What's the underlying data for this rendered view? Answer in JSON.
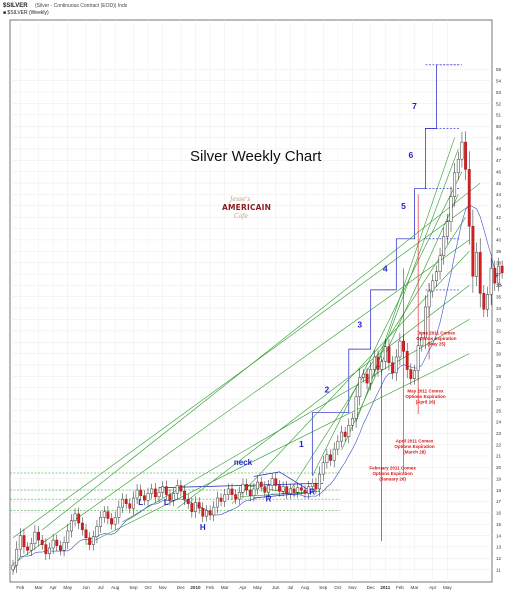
{
  "header": {
    "symbol": "$SILVER",
    "description": "(Silver - Continuous Contract (EOD)) Indx",
    "subtitle": "■ $SILVER (Weekly)"
  },
  "logo_text": [
    "Jesse's",
    "AMERICAIN",
    "Cafe"
  ],
  "colors": {
    "up": "#ffffff",
    "down": "#d42020",
    "wave": "#1e1ec8",
    "trend": "#2a9a2a",
    "ma": "#3a50c8",
    "annotation": "#dd1111"
  },
  "chart_data": {
    "type": "candlestick",
    "title": "Silver Weekly Chart",
    "ylim": [
      10,
      56.5
    ],
    "yaxis": {
      "position": "right",
      "ticks": [
        11,
        12,
        13,
        14,
        15,
        16,
        17,
        18,
        19,
        20,
        21,
        22,
        23,
        24,
        25,
        26,
        27,
        28,
        29,
        30,
        31,
        32,
        33,
        34,
        35,
        36,
        37,
        38,
        39,
        40,
        41,
        42,
        43,
        44,
        45,
        46,
        47,
        48,
        49,
        50,
        51,
        52,
        53,
        54,
        55
      ]
    },
    "xaxis": {
      "ticks": [
        {
          "w": 2,
          "label": "Feb"
        },
        {
          "w": 7,
          "label": "Mar"
        },
        {
          "w": 11,
          "label": "Apr"
        },
        {
          "w": 15,
          "label": "May"
        },
        {
          "w": 20,
          "label": "Jun"
        },
        {
          "w": 24,
          "label": "Jul"
        },
        {
          "w": 28,
          "label": "Aug"
        },
        {
          "w": 33,
          "label": "Sep"
        },
        {
          "w": 37,
          "label": "Oct"
        },
        {
          "w": 41,
          "label": "Nov"
        },
        {
          "w": 46,
          "label": "Dec"
        },
        {
          "w": 50,
          "label": "2010",
          "bold": true
        },
        {
          "w": 54,
          "label": "Feb"
        },
        {
          "w": 58,
          "label": "Mar"
        },
        {
          "w": 63,
          "label": "Apr"
        },
        {
          "w": 67,
          "label": "May"
        },
        {
          "w": 72,
          "label": "Jun"
        },
        {
          "w": 76,
          "label": "Jul"
        },
        {
          "w": 80,
          "label": "Aug"
        },
        {
          "w": 85,
          "label": "Sep"
        },
        {
          "w": 89,
          "label": "Oct"
        },
        {
          "w": 93,
          "label": "Nov"
        },
        {
          "w": 98,
          "label": "Dec"
        },
        {
          "w": 102,
          "label": "2011",
          "bold": true
        },
        {
          "w": 106,
          "label": "Feb"
        },
        {
          "w": 110,
          "label": "Mar"
        },
        {
          "w": 115,
          "label": "Apr"
        },
        {
          "w": 119,
          "label": "May"
        }
      ]
    },
    "closes": [
      11.4,
      12.8,
      14.0,
      13.0,
      12.7,
      13.3,
      14.3,
      13.6,
      13.2,
      12.4,
      12.9,
      13.6,
      13.1,
      12.7,
      13.4,
      14.4,
      15.3,
      15.9,
      15.1,
      14.5,
      13.8,
      13.2,
      13.9,
      14.8,
      15.6,
      16.1,
      15.5,
      15.0,
      15.6,
      16.5,
      17.2,
      16.8,
      16.4,
      17.3,
      18.0,
      17.5,
      17.1,
      17.7,
      18.1,
      17.4,
      17.8,
      18.3,
      17.6,
      17.1,
      17.7,
      18.4,
      17.9,
      17.2,
      16.8,
      16.1,
      16.9,
      16.4,
      15.7,
      16.2,
      15.8,
      16.5,
      17.3,
      17.0,
      17.6,
      18.1,
      17.6,
      17.2,
      17.8,
      18.5,
      18.0,
      17.5,
      18.1,
      18.7,
      18.3,
      17.8,
      18.4,
      19.0,
      18.4,
      17.9,
      18.3,
      17.7,
      18.1,
      17.8,
      18.2,
      18.0,
      17.7,
      18.3,
      18.6,
      18.1,
      19.4,
      20.4,
      21.1,
      20.6,
      21.6,
      22.3,
      23.1,
      22.7,
      23.7,
      24.3,
      26.2,
      27.9,
      28.2,
      27.4,
      28.6,
      29.7,
      28.6,
      29.3,
      30.6,
      29.2,
      28.3,
      29.7,
      31.1,
      30.2,
      28.6,
      27.8,
      28.5,
      30.7,
      31.4,
      34.1,
      35.5,
      36.4,
      37.2,
      38.6,
      40.3,
      41.6,
      43.8,
      45.9,
      47.1,
      48.6,
      46.2,
      41.2,
      36.8,
      38.9,
      35.3,
      33.9,
      35.2,
      37.5,
      36.2,
      37.7,
      37.1
    ],
    "price_zones": [
      {
        "from": 30.4,
        "to": 35.6,
        "peak": 35.6,
        "label": "3"
      },
      {
        "from": 35.6,
        "to": 40.1,
        "peak": 40.1,
        "label": "4"
      },
      {
        "from": 40.1,
        "to": 44.5,
        "peak": 44.5,
        "label": "5"
      },
      {
        "from": 44.5,
        "to": 49.8,
        "peak": 49.8,
        "label": "6"
      },
      {
        "from": 49.8,
        "to": 55.4,
        "peak": 55.4,
        "label": "7"
      }
    ],
    "wave_labels": [
      "1",
      "2",
      "3",
      "4",
      "5",
      "6",
      "7"
    ],
    "pattern_labels": [
      "neck",
      "L",
      "L",
      "H",
      "R",
      "R"
    ],
    "annotations": [
      {
        "lines": [
          "February 2011 Comex",
          "Options Expiration",
          "(January 26)"
        ]
      },
      {
        "lines": [
          "April 2011 Comex",
          "Options Expiration",
          "(March 28)"
        ]
      },
      {
        "lines": [
          "May 2011 Comex",
          "Options Expiration",
          "(April 26)"
        ]
      },
      {
        "lines": [
          "June 2011 Comex",
          "Options Expiration",
          "(May 25)"
        ]
      }
    ]
  }
}
